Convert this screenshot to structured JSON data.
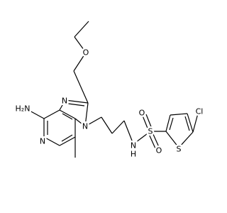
{
  "atoms": [
    {
      "label": "H₂N"
    },
    {
      "label": "N"
    },
    {
      "label": "N"
    },
    {
      "label": "N"
    },
    {
      "label": "O"
    },
    {
      "label": "N"
    },
    {
      "label": "H"
    },
    {
      "label": "S"
    },
    {
      "label": "O"
    },
    {
      "label": "O"
    },
    {
      "label": "S"
    },
    {
      "label": "Cl"
    }
  ]
}
